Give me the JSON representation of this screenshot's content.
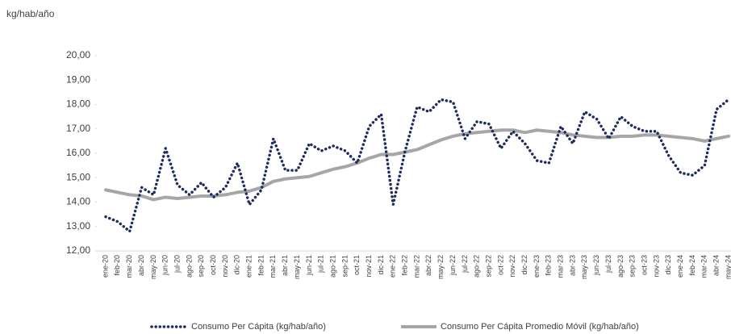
{
  "chart_data": {
    "type": "line",
    "y_axis_label": "kg/hab/año",
    "categories": [
      "ene-20",
      "feb-20",
      "mar-20",
      "abr-20",
      "may-20",
      "jun-20",
      "jul-20",
      "ago-20",
      "sep-20",
      "oct-20",
      "nov-20",
      "dic-20",
      "ene-21",
      "feb-21",
      "mar-21",
      "abr-21",
      "may-21",
      "jun-21",
      "jul-21",
      "ago-21",
      "sep-21",
      "oct-21",
      "nov-21",
      "dic-21",
      "ene-22",
      "feb-22",
      "mar-22",
      "abr-22",
      "may-22",
      "jun-22",
      "jul-22",
      "ago-22",
      "sep-22",
      "oct-22",
      "nov-22",
      "dic-22",
      "ene-23",
      "feb-23",
      "mar-23",
      "abr-23",
      "may-23",
      "jun-23",
      "jul-23",
      "ago-23",
      "sep-23",
      "oct-23",
      "nov-23",
      "dic-23",
      "ene-24",
      "feb-24",
      "mar-24",
      "abr-24",
      "may-24"
    ],
    "series": [
      {
        "name": "Consumo Per Cápita (kg/hab/año)",
        "color": "#1f2d5c",
        "style": "dotted",
        "values": [
          13.4,
          13.2,
          12.8,
          14.6,
          14.3,
          16.2,
          14.7,
          14.3,
          14.8,
          14.2,
          14.6,
          15.6,
          13.9,
          14.5,
          16.6,
          15.3,
          15.3,
          16.4,
          16.1,
          16.3,
          16.1,
          15.6,
          17.1,
          17.6,
          13.9,
          16.1,
          17.9,
          17.7,
          18.2,
          18.1,
          16.6,
          17.3,
          17.2,
          16.2,
          16.9,
          16.4,
          15.7,
          15.6,
          17.1,
          16.4,
          17.7,
          17.4,
          16.6,
          17.5,
          17.1,
          16.9,
          16.9,
          15.9,
          15.2,
          15.1,
          15.5,
          17.8,
          18.2
        ]
      },
      {
        "name": "Consumo Per Cápita Promedio Móvil (kg/hab/año)",
        "color": "#a6a6a6",
        "style": "solid",
        "values": [
          14.5,
          14.4,
          14.3,
          14.25,
          14.1,
          14.2,
          14.15,
          14.2,
          14.25,
          14.25,
          14.3,
          14.4,
          14.45,
          14.6,
          14.85,
          14.95,
          15.0,
          15.05,
          15.2,
          15.35,
          15.45,
          15.6,
          15.8,
          15.95,
          15.95,
          16.05,
          16.15,
          16.35,
          16.55,
          16.7,
          16.8,
          16.85,
          16.9,
          16.95,
          16.95,
          16.85,
          16.95,
          16.9,
          16.85,
          16.75,
          16.7,
          16.65,
          16.65,
          16.7,
          16.7,
          16.75,
          16.75,
          16.7,
          16.65,
          16.6,
          16.5,
          16.6,
          16.7
        ]
      }
    ],
    "ylim": [
      12,
      20
    ],
    "yticks": [
      {
        "value": 12,
        "label": "12,00"
      },
      {
        "value": 13,
        "label": "13,00"
      },
      {
        "value": 14,
        "label": "14,00"
      },
      {
        "value": 15,
        "label": "15,00"
      },
      {
        "value": 16,
        "label": "16,00"
      },
      {
        "value": 17,
        "label": "17,00"
      },
      {
        "value": 18,
        "label": "18,00"
      },
      {
        "value": 19,
        "label": "19,00"
      },
      {
        "value": 20,
        "label": "20,00"
      }
    ],
    "grid": false,
    "legend": "bottom"
  }
}
